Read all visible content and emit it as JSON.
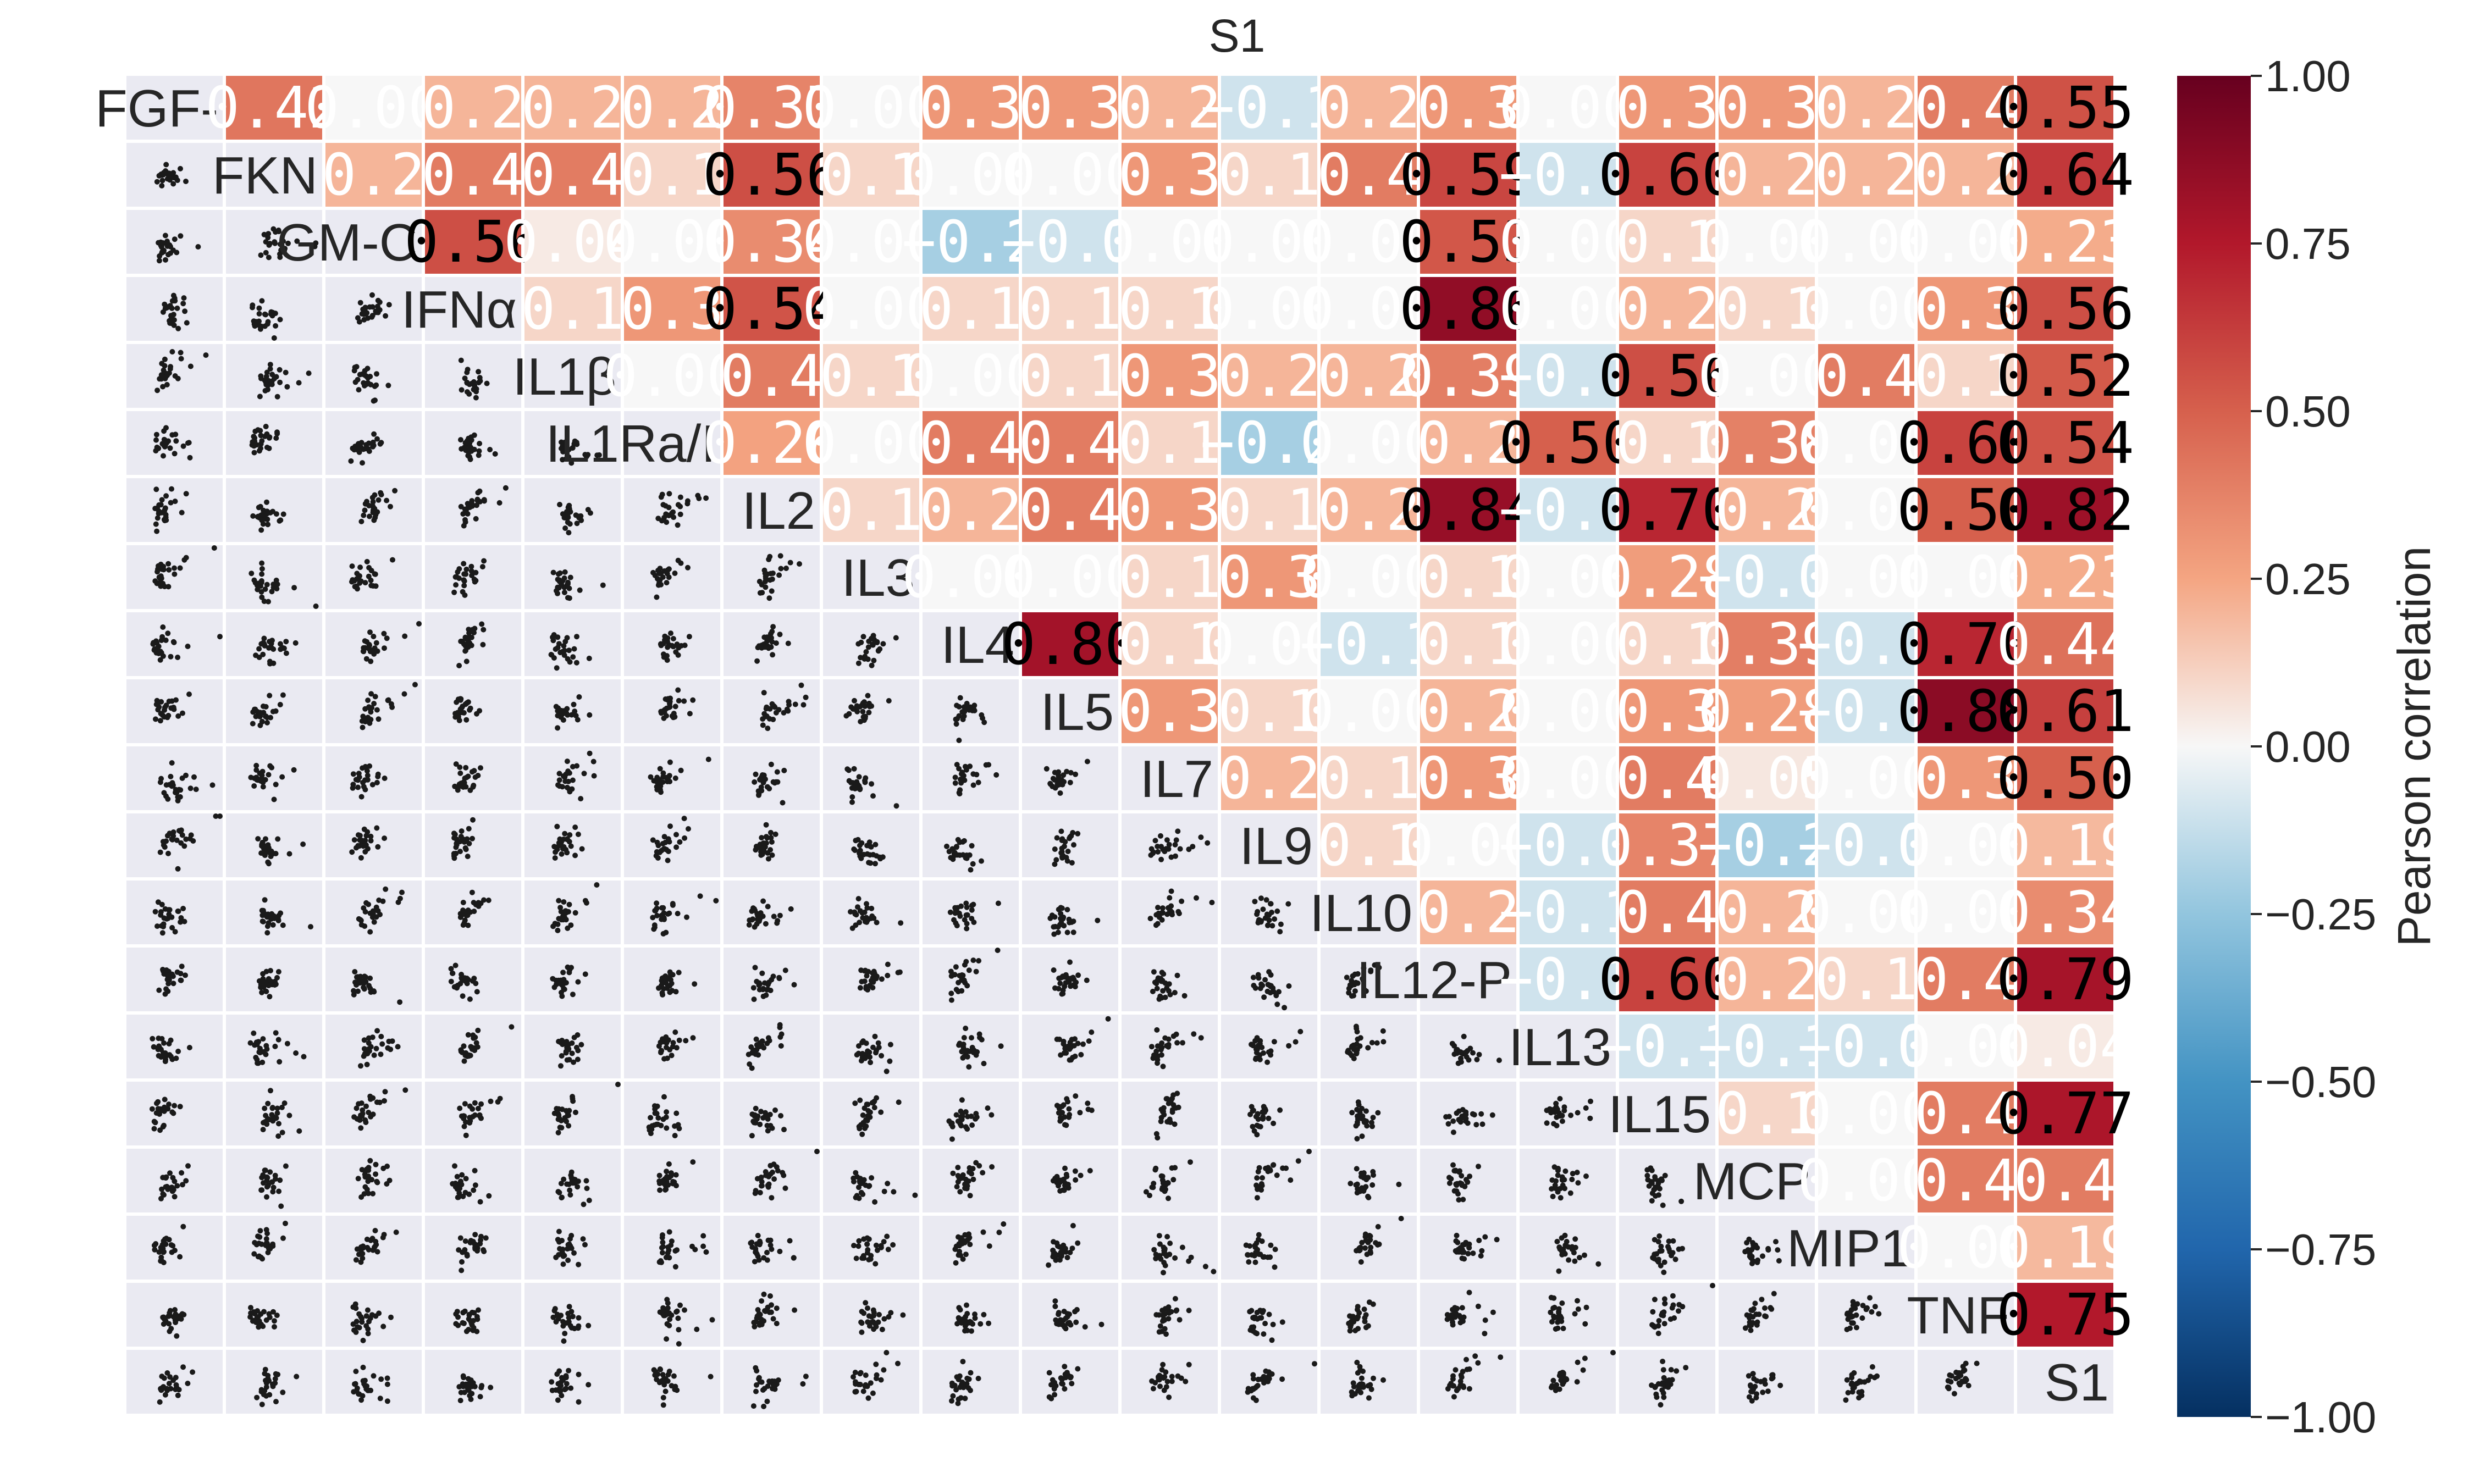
{
  "chart_data": {
    "type": "heatmap",
    "title": "S1",
    "variables": [
      "FGF-",
      "FKN",
      "GM-C",
      "IFNα",
      "IL1β",
      "IL1Ra/I",
      "IL2",
      "IL3",
      "IL4",
      "IL5",
      "IL7",
      "IL9",
      "IL10",
      "IL12-P",
      "IL13",
      "IL15",
      "MCP",
      "MIP1",
      "TNF",
      "S1"
    ],
    "upper_values": [
      [
        0.42,
        0.0,
        0.2,
        0.2,
        0.2,
        0.37,
        0.0,
        0.3,
        0.3,
        0.2,
        -0.1,
        0.2,
        0.3,
        0.0,
        0.3,
        0.3,
        0.2,
        0.4,
        0.55
      ],
      [
        0.2,
        0.4,
        0.4,
        0.1,
        0.56,
        0.1,
        0.0,
        0.0,
        0.3,
        0.1,
        0.4,
        0.59,
        -0.1,
        0.6,
        0.2,
        0.2,
        0.2,
        0.64
      ],
      [
        0.56,
        0.04,
        0.0,
        0.34,
        0.0,
        -0.2,
        -0.1,
        0.0,
        0.0,
        0.0,
        0.53,
        0.0,
        0.1,
        0.0,
        0.0,
        0.0,
        0.23
      ],
      [
        0.1,
        0.3,
        0.54,
        0.0,
        0.1,
        0.1,
        0.1,
        0.0,
        0.0,
        0.86,
        0.0,
        0.2,
        0.1,
        0.0,
        0.3,
        0.56
      ],
      [
        0.0,
        0.4,
        0.1,
        0.0,
        0.1,
        0.3,
        0.2,
        0.2,
        0.39,
        -0.1,
        0.56,
        0.0,
        0.4,
        0.1,
        0.52
      ],
      [
        0.26,
        0.0,
        0.4,
        0.4,
        0.1,
        -0.2,
        0.0,
        0.2,
        0.5,
        0.1,
        0.38,
        0.0,
        0.6,
        0.54
      ],
      [
        0.1,
        0.2,
        0.4,
        0.3,
        0.1,
        0.2,
        0.84,
        -0.1,
        0.7,
        0.2,
        0.0,
        0.5,
        0.82
      ],
      [
        0.0,
        0.0,
        0.1,
        0.3,
        0.0,
        0.1,
        0.0,
        0.28,
        -0.1,
        0.0,
        0.0,
        0.23
      ],
      [
        0.8,
        0.1,
        0.0,
        -0.1,
        0.1,
        0.0,
        0.1,
        0.39,
        -0.1,
        0.7,
        0.44
      ],
      [
        0.3,
        0.1,
        0.0,
        0.2,
        0.0,
        0.3,
        0.28,
        -0.1,
        0.88,
        0.61
      ],
      [
        0.2,
        0.1,
        0.3,
        0.0,
        0.4,
        0.05,
        0.0,
        0.3,
        0.5
      ],
      [
        0.1,
        0.0,
        -0.1,
        0.37,
        -0.2,
        -0.1,
        0.0,
        0.19
      ],
      [
        0.2,
        -0.1,
        0.4,
        0.2,
        0.0,
        0.0,
        0.34
      ],
      [
        -0.1,
        0.6,
        0.2,
        0.1,
        0.4,
        0.79
      ],
      [
        -0.1,
        -0.1,
        -0.1,
        0.0,
        0.04
      ],
      [
        0.1,
        0.0,
        0.4,
        0.77
      ],
      [
        0.0,
        0.4,
        0.4
      ],
      [
        0.0,
        0.19
      ],
      [
        0.75
      ]
    ],
    "colorbar": {
      "label": "Pearson correlation",
      "range": [
        -1.0,
        1.0
      ],
      "ticks": [
        "1.00",
        "0.75",
        "0.50",
        "0.25",
        "0.00",
        "−0.25",
        "−0.50",
        "−0.75",
        "−1.00"
      ],
      "colormap": "RdBu_r"
    },
    "lower_panels": "scatter",
    "panel_background": "#eaeaf2",
    "marker_color": "#1a1a1a"
  }
}
